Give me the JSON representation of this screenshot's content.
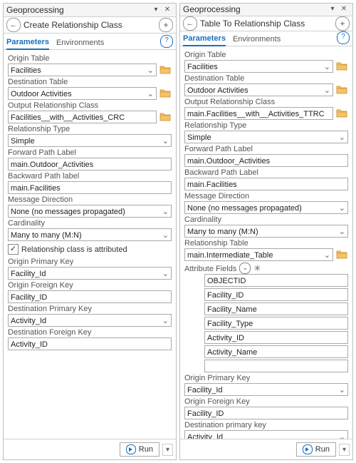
{
  "panes": [
    {
      "id": "left",
      "header": {
        "title": "Geoprocessing"
      },
      "subtitle": "Create Relationship Class",
      "tabs": {
        "active": "Parameters",
        "other": "Environments"
      },
      "fields": [
        {
          "label": "Origin Table",
          "kind": "combo",
          "value": "Facilities",
          "browse": true
        },
        {
          "label": "Destination Table",
          "kind": "combo",
          "value": "Outdoor Activities",
          "browse": true
        },
        {
          "label": "Output Relationship Class",
          "kind": "text",
          "value": "Facilities__with__Activities_CRC",
          "browse": true
        },
        {
          "label": "Relationship Type",
          "kind": "combo",
          "value": "Simple"
        },
        {
          "label": "Forward Path Label",
          "kind": "text",
          "value": "main.Outdoor_Activities"
        },
        {
          "label": "Backward Path label",
          "kind": "text",
          "value": "main.Facilities"
        },
        {
          "label": "Message Direction",
          "kind": "combo",
          "value": "None (no messages propagated)"
        },
        {
          "label": "Cardinality",
          "kind": "combo",
          "value": "Many to many (M:N)"
        },
        {
          "label": "checkbox",
          "kind": "checkbox",
          "text": "Relationship class is attributed",
          "checked": true
        },
        {
          "label": "Origin Primary Key",
          "kind": "combo",
          "value": "Facility_Id"
        },
        {
          "label": "Origin Foreign Key",
          "kind": "text",
          "value": "Facility_ID"
        },
        {
          "label": "Destination Primary Key",
          "kind": "combo",
          "value": "Activity_Id"
        },
        {
          "label": "Destination Foreign Key",
          "kind": "text",
          "value": "Activity_ID"
        }
      ],
      "run": "Run"
    },
    {
      "id": "right",
      "header": {
        "title": "Geoprocessing"
      },
      "subtitle": "Table To Relationship Class",
      "tabs": {
        "active": "Parameters",
        "other": "Environments"
      },
      "fields": [
        {
          "label": "Origin Table",
          "kind": "combo",
          "value": "Facilities",
          "browse": true
        },
        {
          "label": "Destination Table",
          "kind": "combo",
          "value": "Outdoor Activities",
          "browse": true
        },
        {
          "label": "Output Relationship Class",
          "kind": "text",
          "value": "main.Facilities__with__Activities_TTRC",
          "browse": true
        },
        {
          "label": "Relationship Type",
          "kind": "combo",
          "value": "Simple"
        },
        {
          "label": "Forward Path Label",
          "kind": "text",
          "value": "main.Outdoor_Activities"
        },
        {
          "label": "Backward Path Label",
          "kind": "text",
          "value": "main.Facilities"
        },
        {
          "label": "Message Direction",
          "kind": "combo",
          "value": "None (no messages propagated)"
        },
        {
          "label": "Cardinality",
          "kind": "combo",
          "value": "Many to many (M:N)"
        },
        {
          "label": "Relationship Table",
          "kind": "combo",
          "value": "main.Intermediate_Table",
          "browse": true
        },
        {
          "label": "Attribute Fields",
          "kind": "attrfields",
          "items": [
            "OBJECTID",
            "Facility_ID",
            "Facility_Name",
            "Facility_Type",
            "Activity_ID",
            "Activity_Name",
            ""
          ]
        },
        {
          "label": "Origin Primary Key",
          "kind": "combo",
          "value": "Facility_Id"
        },
        {
          "label": "Origin Foreign Key",
          "kind": "text",
          "value": "Facility_ID"
        },
        {
          "label": "Destination primary key",
          "kind": "combo",
          "value": "Activity_Id"
        },
        {
          "label": "Destination Foreign Key",
          "kind": "text",
          "value": "Activity_ID"
        }
      ],
      "run": "Run"
    }
  ],
  "colors": {
    "accent": "#1a6fbf",
    "border": "#aaaaaa",
    "label": "#555555",
    "folder_fill": "#f5c26b",
    "folder_stroke": "#c98e1f"
  }
}
